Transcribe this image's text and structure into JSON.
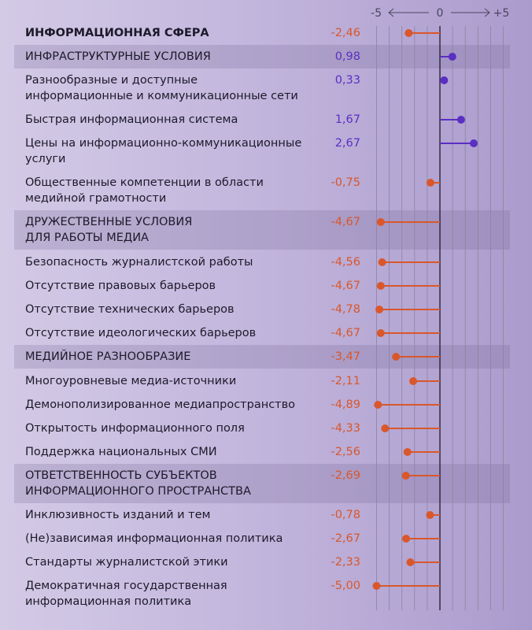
{
  "chart_data": {
    "type": "lollipop",
    "xlim": [
      -5,
      5
    ],
    "x_ticks": [
      "-5",
      "0",
      "+5"
    ],
    "grid": true,
    "colors": {
      "negative": "#d9572b",
      "positive": "#5a2fc2",
      "axis": "#1d1a2a",
      "grid": "#8a83a0"
    },
    "rows": [
      {
        "label": "ИНФОРМАЦИОННАЯ СФЕРА",
        "value": -2.46,
        "display": "-2,46",
        "level": "top"
      },
      {
        "label": "ИНФРАСТРУКТУРНЫЕ УСЛОВИЯ",
        "value": 0.98,
        "display": "0,98",
        "level": "section"
      },
      {
        "label": "Разнообразные и доступные\nинформационные и коммуникационные сети",
        "value": 0.33,
        "display": "0,33",
        "level": "item"
      },
      {
        "label": "Быстрая информационная система",
        "value": 1.67,
        "display": "1,67",
        "level": "item"
      },
      {
        "label": "Цены на информационно-коммуникационные\nуслуги",
        "value": 2.67,
        "display": "2,67",
        "level": "item"
      },
      {
        "label": "Общественные компетенции в области\nмедийной грамотности",
        "value": -0.75,
        "display": "-0,75",
        "level": "item"
      },
      {
        "label": "ДРУЖЕСТВЕННЫЕ УСЛОВИЯ\nДЛЯ РАБОТЫ МЕДИА",
        "value": -4.67,
        "display": "-4,67",
        "level": "section"
      },
      {
        "label": "Безопасность журналистской работы",
        "value": -4.56,
        "display": "-4,56",
        "level": "item"
      },
      {
        "label": "Отсутствие правовых барьеров",
        "value": -4.67,
        "display": "-4,67",
        "level": "item"
      },
      {
        "label": "Отсутствие технических барьеров",
        "value": -4.78,
        "display": "-4,78",
        "level": "item"
      },
      {
        "label": "Отсутствие идеологических барьеров",
        "value": -4.67,
        "display": "-4,67",
        "level": "item"
      },
      {
        "label": "МЕДИЙНОЕ РАЗНООБРАЗИЕ",
        "value": -3.47,
        "display": "-3,47",
        "level": "section"
      },
      {
        "label": "Многоуровневые медиа-источники",
        "value": -2.11,
        "display": "-2,11",
        "level": "item"
      },
      {
        "label": "Демонополизированное медиапространство",
        "value": -4.89,
        "display": "-4,89",
        "level": "item"
      },
      {
        "label": "Открытость информационного поля",
        "value": -4.33,
        "display": "-4,33",
        "level": "item"
      },
      {
        "label": "Поддержка национальных СМИ",
        "value": -2.56,
        "display": "-2,56",
        "level": "item"
      },
      {
        "label": "ОТВЕТСТВЕННОСТЬ СУБЪЕКТОВ\nИНФОРМАЦИОННОГО ПРОСТРАНСТВА",
        "value": -2.69,
        "display": "-2,69",
        "level": "section"
      },
      {
        "label": "Инклюзивность изданий и тем",
        "value": -0.78,
        "display": "-0,78",
        "level": "item"
      },
      {
        "label": "(Не)зависимая информационная политика",
        "value": -2.67,
        "display": "-2,67",
        "level": "item"
      },
      {
        "label": "Стандарты журналистской этики",
        "value": -2.33,
        "display": "-2,33",
        "level": "item"
      },
      {
        "label": "Демократичная государственная\nинформационная политика",
        "value": -5.0,
        "display": "-5,00",
        "level": "item"
      }
    ]
  }
}
